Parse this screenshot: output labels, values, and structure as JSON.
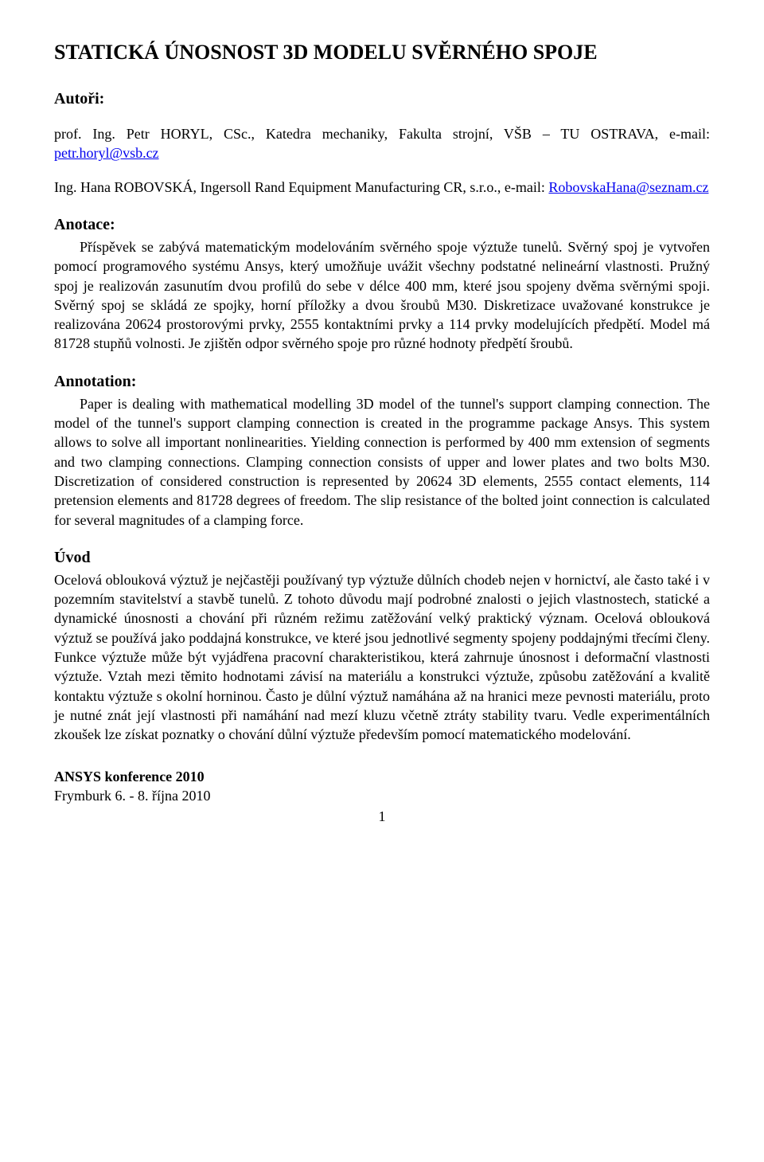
{
  "title": "STATICKÁ ÚNOSNOST 3D MODELU SVĚRNÉHO SPOJE",
  "authors_label": "Autoři:",
  "author1_pre": "prof. Ing. Petr HORYL, CSc., Katedra mechaniky, Fakulta strojní, VŠB – TU OSTRAVA, e-mail: ",
  "author1_email": "petr.horyl@vsb.cz",
  "author2_pre": "Ing. Hana ROBOVSKÁ, Ingersoll Rand Equipment Manufacturing CR, s.r.o., e-mail: ",
  "author2_email": "RobovskaHana@seznam.cz",
  "anotace_heading": "Anotace:",
  "anotace_body": "Příspěvek se zabývá matematickým modelováním svěrného spoje výztuže tunelů. Svěrný spoj je vytvořen pomocí programového systému Ansys, který umožňuje uvážit všechny podstatné nelineární vlastnosti. Pružný spoj je realizován zasunutím dvou profilů do sebe v délce 400 mm, které jsou spojeny dvěma svěrnými spoji. Svěrný spoj se skládá ze spojky, horní příložky a dvou šroubů M30. Diskretizace uvažované konstrukce je realizována 20624 prostorovými prvky, 2555 kontaktními prvky a 114 prvky modelujících předpětí. Model má 81728 stupňů volnosti. Je zjištěn odpor svěrného spoje pro různé hodnoty předpětí šroubů.",
  "annotation_heading": "Annotation:",
  "annotation_body": "Paper is dealing with mathematical modelling 3D model of the tunnel's support clamping connection. The model of the tunnel's support clamping connection is created in the programme package Ansys. This system allows to solve all important nonlinearities. Yielding connection is performed by 400 mm extension of segments and two clamping connections. Clamping connection consists of upper and lower plates and two bolts M30. Discretization of considered construction is represented by 20624 3D elements, 2555 contact elements, 114 pretension elements and 81728 degrees of freedom. The slip resistance of the bolted joint connection is calculated for several magnitudes of a clamping force.",
  "uvod_heading": "Úvod",
  "uvod_body": "Ocelová oblouková výztuž je nejčastěji používaný typ výztuže důlních chodeb nejen v hornictví, ale často také i v pozemním stavitelství a stavbě tunelů. Z tohoto důvodu mají podrobné znalosti o jejich vlastnostech, statické a dynamické únosnosti a chování při různém režimu zatěžování velký praktický význam. Ocelová oblouková výztuž se používá jako poddajná konstrukce, ve které jsou jednotlivé segmenty spojeny poddajnými třecími členy. Funkce výztuže může být vyjádřena pracovní charakteristikou, která zahrnuje únosnost i deformační vlastnosti výztuže. Vztah mezi těmito hodnotami závisí na materiálu a konstrukci výztuže, způsobu zatěžování a kvalitě kontaktu výztuže s okolní horninou. Často je důlní výztuž namáhána až na hranici meze pevnosti materiálu, proto je nutné znát její vlastnosti při namáhání nad mezí kluzu včetně ztráty stability tvaru. Vedle experimentálních zkoušek lze získat poznatky o chování důlní výztuže především pomocí matematického modelování.",
  "footer_conf": "ANSYS konference 2010",
  "footer_loc": "Frymburk 6. - 8. října 2010",
  "page_number": "1"
}
